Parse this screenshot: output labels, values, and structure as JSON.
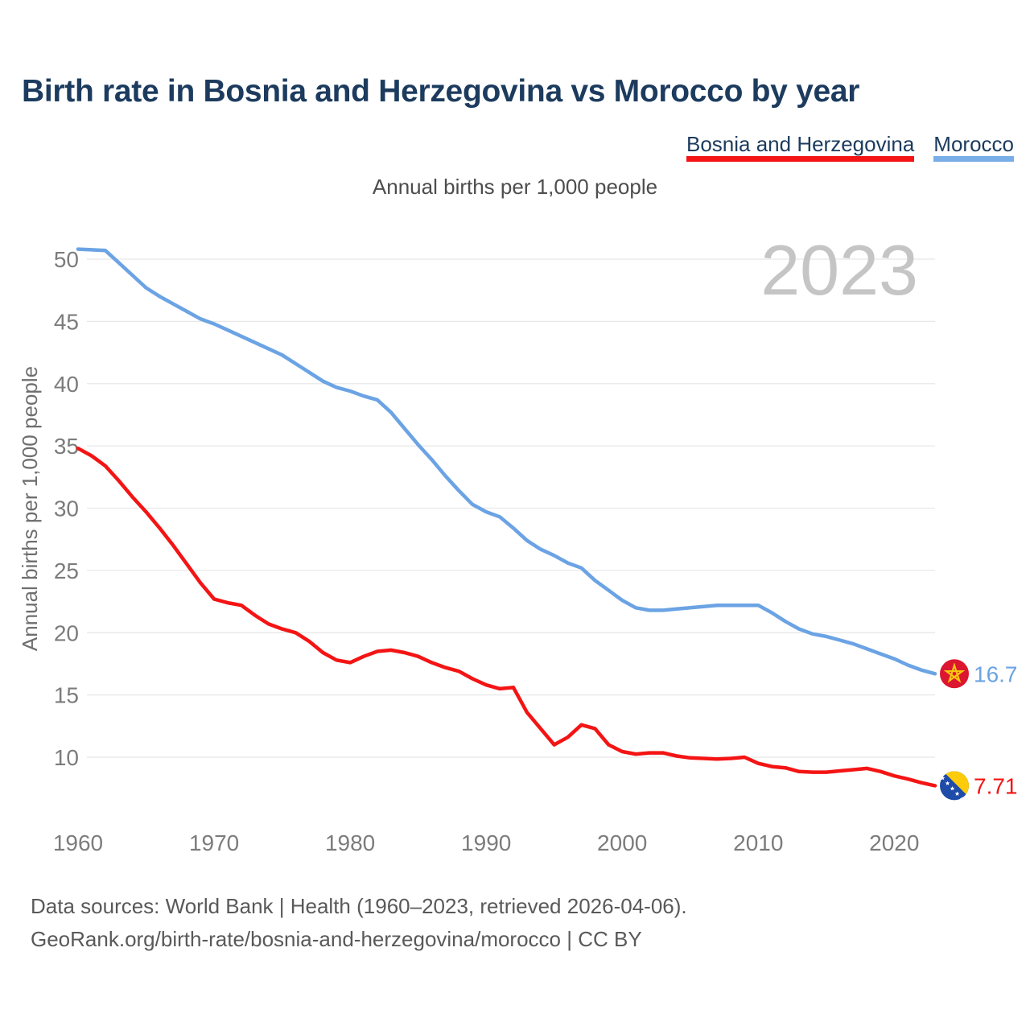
{
  "page": {
    "title": "Birth rate in Bosnia and Herzegovina vs Morocco by year",
    "subtitle": "Annual births per 1,000 people",
    "footer_line1": "Data sources: World Bank | Health (1960–2023, retrieved 2026-04-06).",
    "footer_line2": "GeoRank.org/birth-rate/bosnia-and-herzegovina/morocco | CC BY"
  },
  "legend": [
    {
      "label": "Bosnia and Herzegovina",
      "color": "#f41414"
    },
    {
      "label": "Morocco",
      "color": "#78ade8"
    }
  ],
  "chart_data": {
    "type": "line",
    "title": "Birth rate in Bosnia and Herzegovina vs Morocco by year",
    "subtitle": "Annual births per 1,000 people",
    "watermark": "2023",
    "grid": "horizontal",
    "legend_position": "top-right",
    "x_axis": {
      "range": [
        1960,
        2023
      ],
      "ticks": [
        1960,
        1970,
        1980,
        1990,
        2000,
        2010,
        2020
      ]
    },
    "y_axis": {
      "label": "Annual births per 1,000 people",
      "ticks": [
        10,
        15,
        20,
        25,
        30,
        35,
        40,
        45,
        50
      ],
      "ylim": [
        7,
        52
      ]
    },
    "years": [
      1960,
      1961,
      1962,
      1963,
      1964,
      1965,
      1966,
      1967,
      1968,
      1969,
      1970,
      1971,
      1972,
      1973,
      1974,
      1975,
      1976,
      1977,
      1978,
      1979,
      1980,
      1981,
      1982,
      1983,
      1984,
      1985,
      1986,
      1987,
      1988,
      1989,
      1990,
      1991,
      1992,
      1993,
      1994,
      1995,
      1996,
      1997,
      1998,
      1999,
      2000,
      2001,
      2002,
      2003,
      2004,
      2005,
      2006,
      2007,
      2008,
      2009,
      2010,
      2011,
      2012,
      2013,
      2014,
      2015,
      2016,
      2017,
      2018,
      2019,
      2020,
      2021,
      2022,
      2023
    ],
    "series": [
      {
        "id": "bosnia",
        "name": "Bosnia and Herzegovina",
        "color": "#f41414",
        "end_label": "7.71",
        "end_value": 7.71,
        "flag": {
          "icon": "bosnia-flag-icon",
          "bg": "#1e4ca8",
          "triangle": "#fdcb0a",
          "stars": "#ffffff"
        },
        "values": [
          34.8,
          34.2,
          33.4,
          32.2,
          30.9,
          29.7,
          28.4,
          27.0,
          25.5,
          24.0,
          22.7,
          22.4,
          22.2,
          21.4,
          20.7,
          20.3,
          20.0,
          19.3,
          18.4,
          17.8,
          17.6,
          18.1,
          18.5,
          18.6,
          18.4,
          18.1,
          17.6,
          17.2,
          16.9,
          16.3,
          15.8,
          15.5,
          15.6,
          13.6,
          12.3,
          11.0,
          11.6,
          12.6,
          12.3,
          11.0,
          10.45,
          10.25,
          10.35,
          10.35,
          10.1,
          9.95,
          9.9,
          9.85,
          9.9,
          10.0,
          9.5,
          9.25,
          9.15,
          8.85,
          8.8,
          8.8,
          8.9,
          9.0,
          9.1,
          8.85,
          8.5,
          8.25,
          7.95,
          7.71
        ]
      },
      {
        "id": "morocco",
        "name": "Morocco",
        "color": "#6ba3e4",
        "end_label": "16.7",
        "end_value": 16.7,
        "flag": {
          "icon": "morocco-flag-icon",
          "bg": "#dc1630",
          "star": "#f6c50e"
        },
        "values": [
          50.8,
          50.75,
          50.7,
          49.7,
          48.7,
          47.7,
          47.0,
          46.4,
          45.8,
          45.2,
          44.8,
          44.3,
          43.8,
          43.3,
          42.8,
          42.3,
          41.6,
          40.9,
          40.2,
          39.7,
          39.4,
          39.0,
          38.7,
          37.7,
          36.4,
          35.1,
          33.9,
          32.6,
          31.4,
          30.3,
          29.7,
          29.3,
          28.4,
          27.4,
          26.7,
          26.2,
          25.6,
          25.2,
          24.2,
          23.4,
          22.6,
          22.0,
          21.8,
          21.8,
          21.9,
          22.0,
          22.1,
          22.2,
          22.2,
          22.2,
          22.2,
          21.6,
          20.9,
          20.3,
          19.9,
          19.7,
          19.4,
          19.1,
          18.7,
          18.3,
          17.9,
          17.4,
          17.0,
          16.7
        ]
      }
    ]
  }
}
